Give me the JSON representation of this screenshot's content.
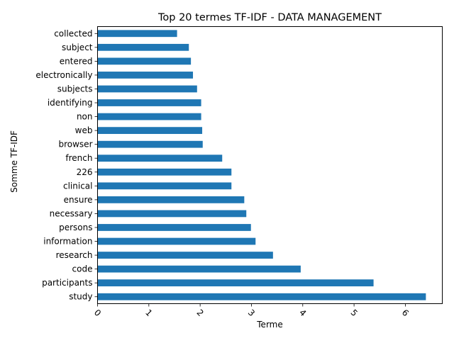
{
  "chart_data": {
    "type": "bar",
    "orientation": "horizontal",
    "title": "Top 20 termes TF-IDF - DATA MANAGEMENT",
    "xlabel": "Terme",
    "ylabel": "Somme TF-IDF",
    "xlim": [
      0,
      6.72
    ],
    "xticks": [
      "0",
      "1",
      "2",
      "3",
      "4",
      "5",
      "6"
    ],
    "grid": false,
    "bar_color": "#1f77b4",
    "categories": [
      "study",
      "participants",
      "code",
      "research",
      "information",
      "persons",
      "necessary",
      "ensure",
      "clinical",
      "226",
      "french",
      "browser",
      "web",
      "non",
      "identifying",
      "subjects",
      "electronically",
      "entered",
      "subject",
      "collected"
    ],
    "values": [
      6.4,
      5.38,
      3.96,
      3.42,
      3.08,
      2.99,
      2.9,
      2.86,
      2.61,
      2.61,
      2.43,
      2.05,
      2.04,
      2.02,
      2.02,
      1.94,
      1.86,
      1.82,
      1.78,
      1.55
    ]
  }
}
